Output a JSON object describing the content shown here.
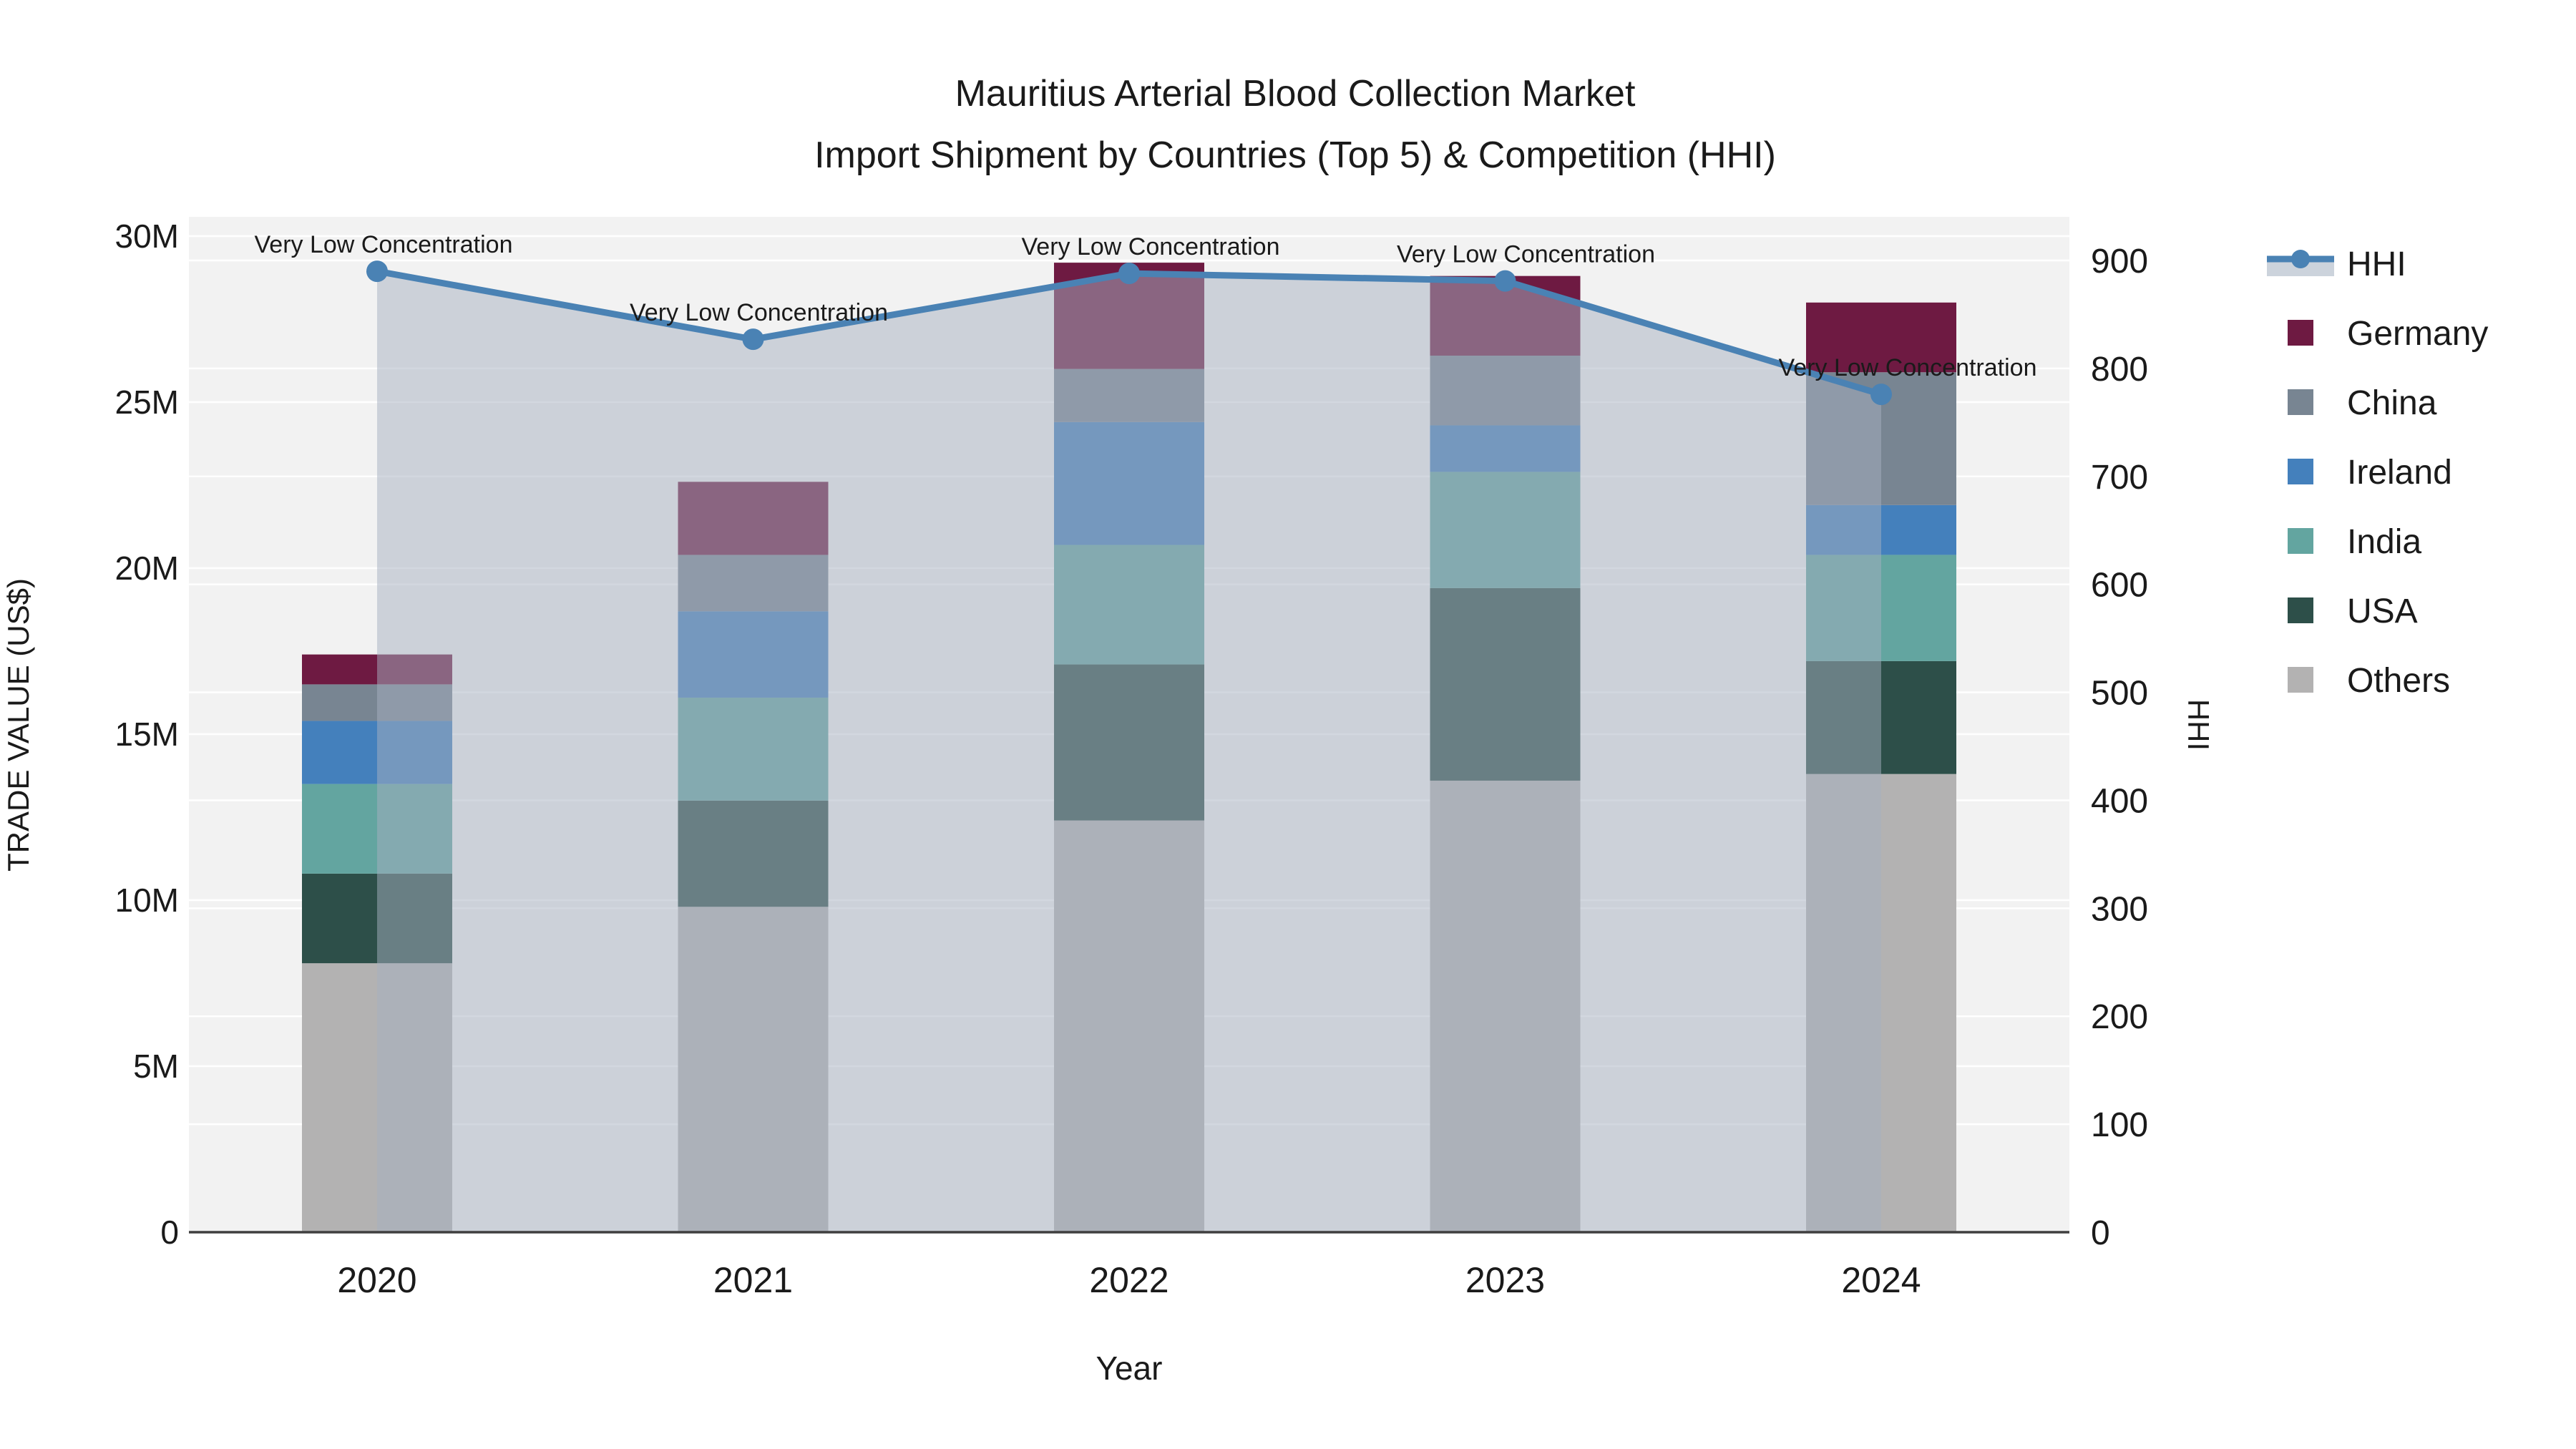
{
  "title": "Mauritius Arterial Blood Collection Market",
  "subtitle": "Import Shipment by Countries (Top 5) & Competition (HHI)",
  "chart_data": {
    "type": "bar+line",
    "categories": [
      "2020",
      "2021",
      "2022",
      "2023",
      "2024"
    ],
    "bar_series": [
      {
        "name": "Others",
        "color": "#b3b2b2",
        "values": [
          8.1,
          9.8,
          12.4,
          13.6,
          13.8
        ]
      },
      {
        "name": "USA",
        "color": "#2d4f49",
        "values": [
          2.7,
          3.2,
          4.7,
          5.8,
          3.4
        ]
      },
      {
        "name": "India",
        "color": "#63a5a0",
        "values": [
          2.7,
          3.1,
          3.6,
          3.5,
          3.2
        ]
      },
      {
        "name": "Ireland",
        "color": "#4480bc",
        "values": [
          1.9,
          2.6,
          3.7,
          1.4,
          1.5
        ]
      },
      {
        "name": "China",
        "color": "#788592",
        "values": [
          1.1,
          1.7,
          1.6,
          2.1,
          4.0
        ]
      },
      {
        "name": "Germany",
        "color": "#6e1a42",
        "values": [
          0.9,
          2.2,
          3.2,
          2.4,
          2.1
        ]
      }
    ],
    "line_series": {
      "name": "HHI",
      "color": "#4a82b4",
      "area_fill": "rgba(166,176,192,0.5)",
      "values": [
        890,
        827,
        888,
        881,
        776
      ]
    },
    "annotations": [
      "Very Low Concentration",
      "Very Low Concentration",
      "Very Low Concentration",
      "Very Low Concentration",
      "Very Low Concentration"
    ],
    "xlabel": "Year",
    "ylabel": "TRADE VALUE (US$)",
    "y2label": "HHI",
    "ylim": [
      0,
      30000000
    ],
    "y2lim": [
      0,
      900
    ],
    "yticks": {
      "values": [
        0,
        5,
        10,
        15,
        20,
        25,
        30
      ],
      "labels": [
        "0",
        "5M",
        "10M",
        "15M",
        "20M",
        "25M",
        "30M"
      ]
    },
    "y2ticks": {
      "values": [
        0,
        100,
        200,
        300,
        400,
        500,
        600,
        700,
        800,
        900
      ],
      "labels": [
        "0",
        "100",
        "200",
        "300",
        "400",
        "500",
        "600",
        "700",
        "800",
        "900"
      ]
    },
    "legend": [
      "HHI",
      "Germany",
      "China",
      "Ireland",
      "India",
      "USA",
      "Others"
    ],
    "grid": true,
    "legend_position": "right",
    "plot_bgcolor": "#f2f2f2",
    "paper_bgcolor": "#ffffff"
  }
}
